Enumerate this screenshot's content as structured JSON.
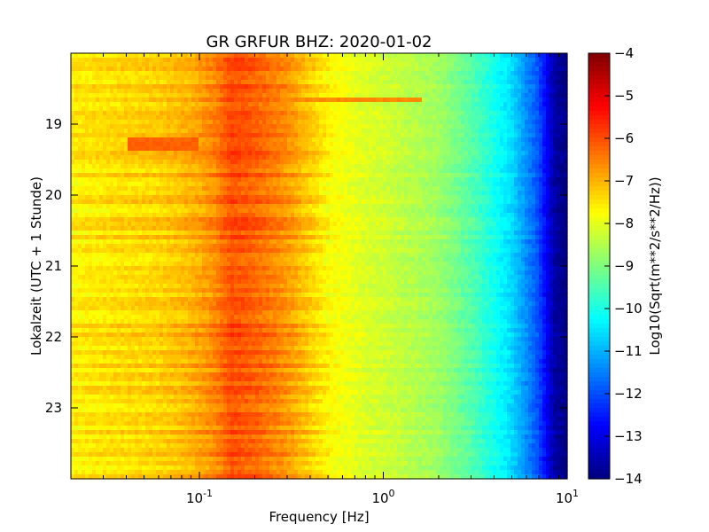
{
  "chart_data": {
    "type": "heatmap",
    "title": "GR GRFUR BHZ: 2020-01-02",
    "xlabel": "Frequency [Hz]",
    "ylabel": "Lokalzeit (UTC + 1 Stunde)",
    "colorbar_label": "Log10(Sqrt(m**2/s**2/Hz))",
    "x_scale": "log",
    "xlim": [
      0.02,
      10
    ],
    "x_ticks": [
      {
        "value": 0.1,
        "base": "10",
        "exp": "-1"
      },
      {
        "value": 1,
        "base": "10",
        "exp": "0"
      },
      {
        "value": 10,
        "base": "10",
        "exp": "1"
      }
    ],
    "ylim": [
      18,
      24
    ],
    "y_inverted": true,
    "y_ticks": [
      {
        "value": 19,
        "label": "19"
      },
      {
        "value": 20,
        "label": "20"
      },
      {
        "value": 21,
        "label": "21"
      },
      {
        "value": 22,
        "label": "22"
      },
      {
        "value": 23,
        "label": "23"
      }
    ],
    "clim": [
      -14,
      -4
    ],
    "colormap": "jet",
    "colorbar_ticks": [
      {
        "value": -4,
        "label": "−4"
      },
      {
        "value": -5,
        "label": "−5"
      },
      {
        "value": -6,
        "label": "−6"
      },
      {
        "value": -7,
        "label": "−7"
      },
      {
        "value": -8,
        "label": "−8"
      },
      {
        "value": -9,
        "label": "−9"
      },
      {
        "value": -10,
        "label": "−10"
      },
      {
        "value": -11,
        "label": "−11"
      },
      {
        "value": -12,
        "label": "−12"
      },
      {
        "value": -13,
        "label": "−13"
      },
      {
        "value": -14,
        "label": "−14"
      }
    ],
    "spectrum_profile": {
      "frequency_hz": [
        0.02,
        0.04,
        0.06,
        0.09,
        0.12,
        0.15,
        0.2,
        0.3,
        0.5,
        0.8,
        1,
        2,
        3,
        5,
        7,
        8.5,
        10
      ],
      "log10_psd": [
        -7.6,
        -7.4,
        -7.3,
        -7.0,
        -6.6,
        -6.0,
        -6.2,
        -6.7,
        -7.7,
        -8.1,
        -8.2,
        -8.7,
        -9.4,
        -10.6,
        -12.0,
        -13.6,
        -14.0
      ]
    },
    "features": [
      {
        "time": [
          19.2,
          19.4
        ],
        "frequency_hz": [
          0.04,
          0.1
        ],
        "log10_psd": -6.2
      },
      {
        "time": [
          18.62,
          18.7
        ],
        "frequency_hz": [
          0.3,
          1.6
        ],
        "log10_psd": -6.6
      }
    ]
  }
}
